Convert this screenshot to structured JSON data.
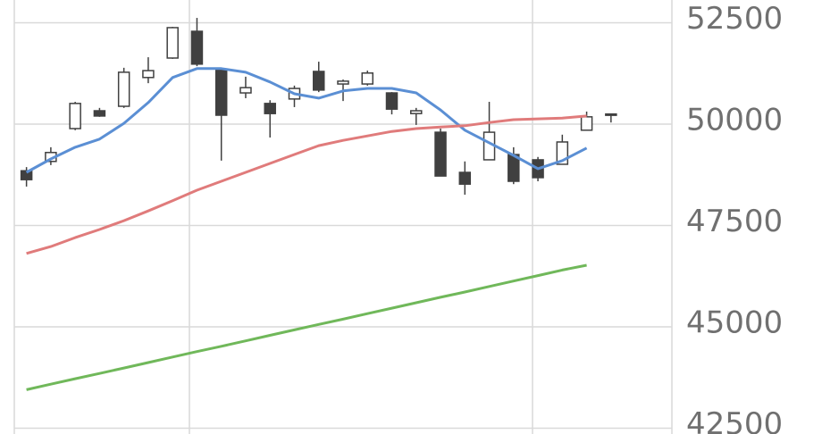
{
  "chart_data": {
    "type": "candlestick",
    "categories": [
      null,
      null,
      null,
      null,
      null,
      null,
      null,
      null,
      null,
      null,
      null,
      null,
      null,
      null,
      null,
      null,
      null,
      null,
      null,
      null,
      null,
      null,
      null,
      null,
      null,
      null,
      null
    ],
    "open": [
      48850,
      49080,
      49890,
      50330,
      50440,
      51150,
      51630,
      52290,
      51340,
      50770,
      50510,
      50620,
      51300,
      50990,
      50990,
      50770,
      50260,
      49800,
      48810,
      49120,
      49250,
      49120,
      49010,
      49850,
      50240,
      null,
      null
    ],
    "high": [
      48940,
      49430,
      50550,
      50400,
      51390,
      51650,
      52400,
      52620,
      51390,
      51170,
      50590,
      50950,
      51540,
      51100,
      51320,
      50790,
      50400,
      49890,
      49080,
      50550,
      49430,
      49190,
      49740,
      50310,
      50260,
      null,
      null
    ],
    "low": [
      48460,
      48990,
      49850,
      50180,
      50400,
      51010,
      51610,
      51430,
      49100,
      50640,
      49670,
      50420,
      50790,
      50570,
      50950,
      50240,
      49980,
      48720,
      48260,
      49120,
      48520,
      48590,
      49010,
      49850,
      50040,
      null,
      null
    ],
    "close": [
      48630,
      49300,
      50510,
      50200,
      51280,
      51320,
      52380,
      51480,
      50220,
      50900,
      50260,
      50880,
      50840,
      51060,
      51260,
      50370,
      50330,
      48720,
      48520,
      49800,
      48590,
      48680,
      49560,
      50180,
      50250,
      null,
      null
    ],
    "up_color": "#ffffff",
    "down_color": "#404040",
    "series": [
      {
        "color": "#5b8fd4",
        "values": [
          48810,
          49140,
          49430,
          49630,
          50020,
          50530,
          51150,
          51370,
          51370,
          51280,
          51040,
          50750,
          50640,
          50820,
          50880,
          50880,
          50770,
          50350,
          49850,
          49540,
          49230,
          48900,
          49100,
          49410,
          null,
          null,
          null
        ]
      },
      {
        "color": "#e07b7b",
        "values": [
          46810,
          46980,
          47200,
          47400,
          47620,
          47860,
          48110,
          48370,
          48590,
          48810,
          49030,
          49250,
          49470,
          49600,
          49710,
          49820,
          49890,
          49930,
          49960,
          50040,
          50110,
          50130,
          50150,
          50200,
          null,
          null,
          null
        ]
      },
      {
        "color": "#70b85a",
        "values": [
          43450,
          43585,
          43720,
          43850,
          43985,
          44120,
          44255,
          44390,
          44520,
          44655,
          44790,
          44925,
          45060,
          45190,
          45325,
          45460,
          45595,
          45730,
          45860,
          45995,
          46130,
          46265,
          46400,
          46520,
          null,
          null,
          null
        ]
      }
    ],
    "ylim": [
      42500,
      52500
    ],
    "yticks": [
      42500,
      45000,
      47500,
      50000,
      52500
    ],
    "grid": true
  }
}
